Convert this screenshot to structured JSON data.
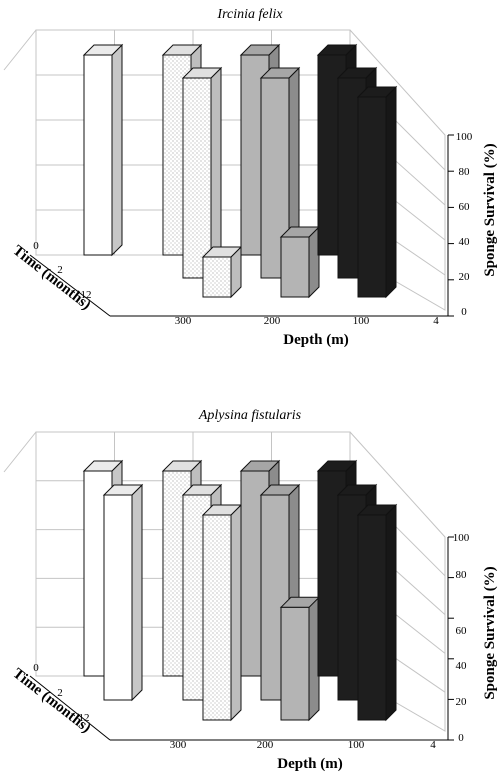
{
  "chart_data": [
    {
      "type": "bar",
      "subtype": "3d-bar",
      "title": "Ircinia felix",
      "xlabel": "Depth (m)",
      "ylabel": "Time (months)",
      "zlabel": "Sponge Survival (%)",
      "depth_categories": [
        "300",
        "200",
        "100",
        "4"
      ],
      "time_categories": [
        "0",
        "2",
        "12"
      ],
      "zlim": [
        0,
        100
      ],
      "z_ticks": [
        "0",
        "20",
        "40",
        "60",
        "80",
        "100"
      ],
      "grid": true,
      "series": [
        {
          "depth": "300",
          "values": [
            100,
            null,
            null
          ]
        },
        {
          "depth": "200",
          "values": [
            100,
            100,
            20
          ]
        },
        {
          "depth": "100",
          "values": [
            100,
            100,
            30
          ]
        },
        {
          "depth": "4",
          "values": [
            100,
            100,
            100
          ]
        }
      ]
    },
    {
      "type": "bar",
      "subtype": "3d-bar",
      "title": "Aplysina fistularis",
      "xlabel": "Depth (m)",
      "ylabel": "Time (months)",
      "zlabel": "Sponge Survival (%)",
      "depth_categories": [
        "300",
        "200",
        "100",
        "4"
      ],
      "time_categories": [
        "0",
        "2",
        "12"
      ],
      "zlim": [
        0,
        100
      ],
      "z_ticks": [
        "0",
        "20",
        "40",
        "60",
        "80",
        "100"
      ],
      "grid": true,
      "series": [
        {
          "depth": "300",
          "values": [
            100,
            100,
            null
          ]
        },
        {
          "depth": "200",
          "values": [
            100,
            100,
            100
          ]
        },
        {
          "depth": "100",
          "values": [
            100,
            100,
            55
          ]
        },
        {
          "depth": "4",
          "values": [
            100,
            100,
            100
          ]
        }
      ]
    }
  ],
  "colors": {
    "d300": "#ffffff",
    "d200": "#f3f3f3",
    "d100": "#b4b4b4",
    "d4": "#1e1e1e",
    "grid": "#c4c4c4",
    "axis": "#000000"
  }
}
